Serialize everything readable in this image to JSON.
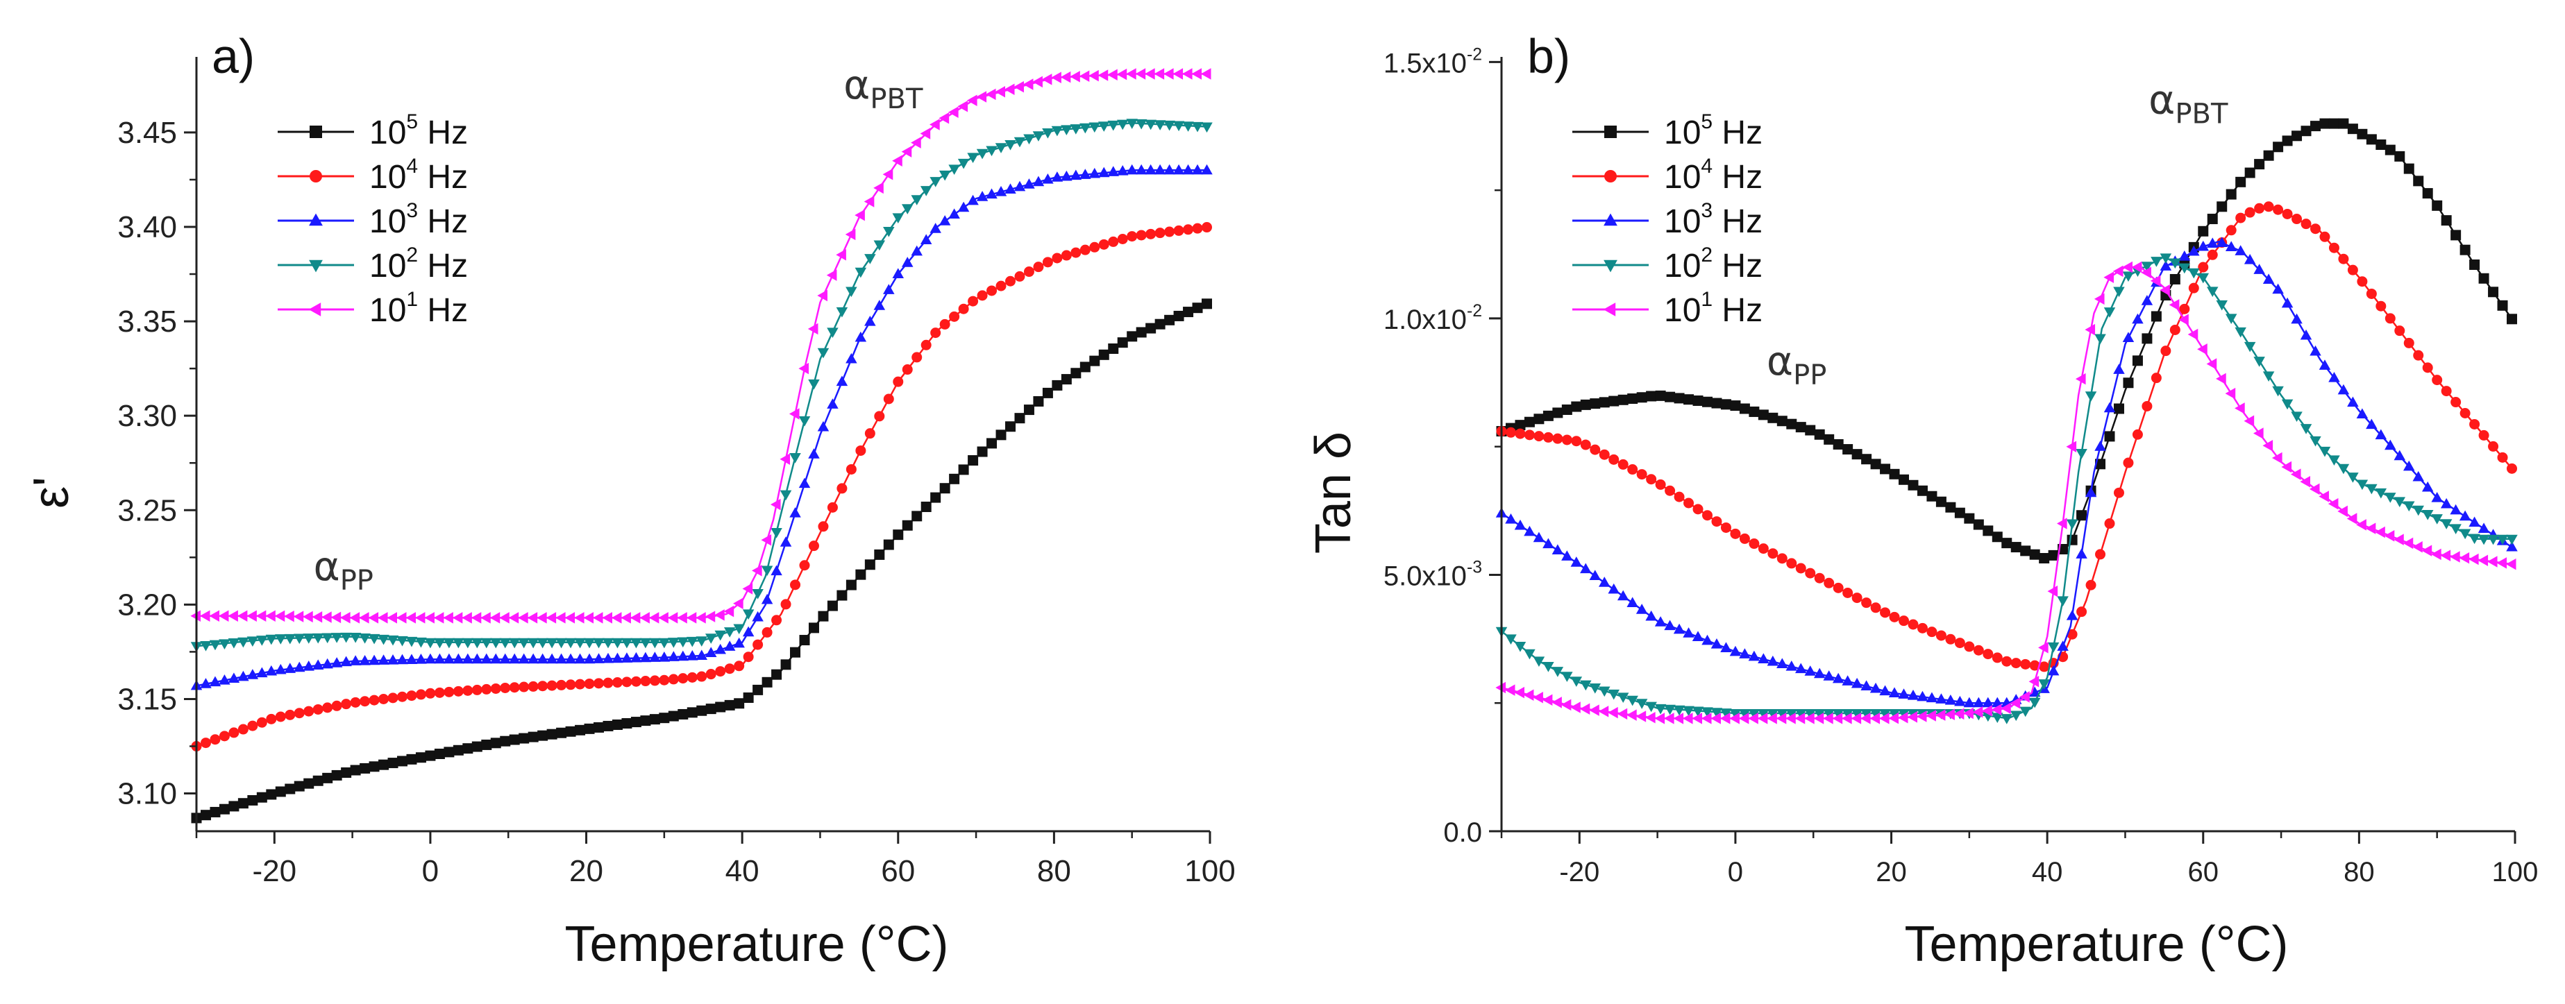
{
  "chart_data": [
    {
      "type": "line",
      "panel_label": "a)",
      "xlabel": "Temperature (°C)",
      "ylabel": "ε'",
      "xlim": [
        -30,
        100
      ],
      "ylim": [
        3.08,
        3.49
      ],
      "xticks": [
        -20,
        0,
        20,
        40,
        60,
        80,
        100
      ],
      "xtick_labels": [
        "-20",
        "0",
        "20",
        "40",
        "60",
        "80",
        "100"
      ],
      "yticks": [
        3.1,
        3.15,
        3.2,
        3.25,
        3.3,
        3.35,
        3.4,
        3.45
      ],
      "ytick_labels": [
        "3.10",
        "3.15",
        "3.20",
        "3.25",
        "3.30",
        "3.35",
        "3.40",
        "3.45"
      ],
      "legend_position": "top-left",
      "annotations": [
        {
          "base": "α",
          "sub": "PP",
          "x": -15,
          "y": 3.213
        },
        {
          "base": "α",
          "sub": "PBT",
          "x": 53,
          "y": 3.468
        }
      ],
      "series": [
        {
          "name_base": "10",
          "name_exp": "5",
          "name_unit": "Hz",
          "color": "#111111",
          "marker": "square",
          "x": [
            -30,
            -20,
            -10,
            0,
            10,
            20,
            30,
            35,
            40,
            45,
            50,
            55,
            60,
            70,
            80,
            90,
            100
          ],
          "y": [
            3.087,
            3.1,
            3.112,
            3.12,
            3.128,
            3.134,
            3.14,
            3.144,
            3.148,
            3.165,
            3.192,
            3.215,
            3.237,
            3.278,
            3.315,
            3.342,
            3.36
          ]
        },
        {
          "name_base": "10",
          "name_exp": "4",
          "name_unit": "Hz",
          "color": "#ff1a1a",
          "marker": "circle",
          "x": [
            -30,
            -20,
            -10,
            0,
            10,
            20,
            30,
            35,
            40,
            45,
            50,
            55,
            60,
            65,
            70,
            80,
            90,
            100
          ],
          "y": [
            3.125,
            3.14,
            3.148,
            3.153,
            3.156,
            3.158,
            3.16,
            3.162,
            3.168,
            3.195,
            3.238,
            3.28,
            3.318,
            3.345,
            3.362,
            3.383,
            3.395,
            3.4
          ]
        },
        {
          "name_base": "10",
          "name_exp": "3",
          "name_unit": "Hz",
          "color": "#1a1aff",
          "marker": "triangle-up",
          "x": [
            -30,
            -20,
            -10,
            0,
            10,
            20,
            30,
            35,
            40,
            43,
            46,
            50,
            55,
            60,
            65,
            70,
            80,
            90,
            100
          ],
          "y": [
            3.157,
            3.165,
            3.17,
            3.171,
            3.171,
            3.171,
            3.172,
            3.173,
            3.18,
            3.2,
            3.238,
            3.29,
            3.34,
            3.375,
            3.4,
            3.415,
            3.426,
            3.43,
            3.43
          ]
        },
        {
          "name_base": "10",
          "name_exp": "2",
          "name_unit": "Hz",
          "color": "#108a8a",
          "marker": "triangle-down",
          "x": [
            -30,
            -20,
            -10,
            0,
            10,
            20,
            30,
            35,
            40,
            43,
            46,
            50,
            55,
            60,
            65,
            70,
            80,
            90,
            100
          ],
          "y": [
            3.178,
            3.182,
            3.183,
            3.18,
            3.18,
            3.18,
            3.18,
            3.181,
            3.188,
            3.215,
            3.265,
            3.33,
            3.375,
            3.405,
            3.425,
            3.438,
            3.451,
            3.455,
            3.453
          ]
        },
        {
          "name_base": "10",
          "name_exp": "1",
          "name_unit": "Hz",
          "color": "#ff1aff",
          "marker": "triangle-left",
          "x": [
            -30,
            -20,
            -10,
            0,
            10,
            20,
            30,
            35,
            38,
            40,
            42,
            44,
            46,
            48,
            50,
            55,
            60,
            65,
            70,
            80,
            90,
            100
          ],
          "y": [
            3.194,
            3.194,
            3.193,
            3.193,
            3.193,
            3.193,
            3.193,
            3.193,
            3.195,
            3.202,
            3.218,
            3.245,
            3.285,
            3.325,
            3.36,
            3.405,
            3.435,
            3.455,
            3.468,
            3.479,
            3.481,
            3.481
          ]
        }
      ]
    },
    {
      "type": "line",
      "panel_label": "b)",
      "xlabel": "Temperature (°C)",
      "ylabel": "Tan δ",
      "xlim": [
        -30,
        100
      ],
      "ylim": [
        0.0,
        0.0151
      ],
      "xticks": [
        -20,
        0,
        20,
        40,
        60,
        80,
        100
      ],
      "xtick_labels": [
        "-20",
        "0",
        "20",
        "40",
        "60",
        "80",
        "100"
      ],
      "yticks": [
        0.0,
        0.005,
        0.01,
        0.015
      ],
      "ytick_labels": [
        {
          "m": "0.0",
          "e": ""
        },
        {
          "m": "5.0x10",
          "e": "-3"
        },
        {
          "m": "1.0x10",
          "e": "-2"
        },
        {
          "m": "1.5x10",
          "e": "-2"
        }
      ],
      "legend_position": "top-left",
      "annotations": [
        {
          "base": "α",
          "sub": "PP",
          "x": 4,
          "y": 0.0089
        },
        {
          "base": "α",
          "sub": "PBT",
          "x": 53,
          "y": 0.014
        }
      ],
      "series": [
        {
          "name_base": "10",
          "name_exp": "5",
          "name_unit": "Hz",
          "color": "#111111",
          "marker": "square",
          "x": [
            -30,
            -20,
            -10,
            0,
            10,
            20,
            30,
            35,
            40,
            43,
            46,
            50,
            55,
            60,
            65,
            70,
            75,
            78,
            85,
            90,
            95,
            100
          ],
          "y": [
            0.0078,
            0.0083,
            0.0085,
            0.0083,
            0.0078,
            0.007,
            0.0061,
            0.0056,
            0.0053,
            0.0056,
            0.0068,
            0.0086,
            0.0104,
            0.0117,
            0.0127,
            0.0134,
            0.0138,
            0.0138,
            0.0132,
            0.0122,
            0.011,
            0.0099
          ]
        },
        {
          "name_base": "10",
          "name_exp": "4",
          "name_unit": "Hz",
          "color": "#ff1a1a",
          "marker": "circle",
          "x": [
            -30,
            -20,
            -10,
            0,
            10,
            20,
            30,
            35,
            40,
            42,
            45,
            50,
            55,
            60,
            65,
            68,
            70,
            75,
            80,
            90,
            100
          ],
          "y": [
            0.0078,
            0.0076,
            0.0068,
            0.0058,
            0.005,
            0.0042,
            0.0036,
            0.0033,
            0.0032,
            0.0034,
            0.0045,
            0.007,
            0.0093,
            0.011,
            0.012,
            0.0122,
            0.0121,
            0.0117,
            0.0108,
            0.0088,
            0.007
          ]
        },
        {
          "name_base": "10",
          "name_exp": "3",
          "name_unit": "Hz",
          "color": "#1a1aff",
          "marker": "triangle-up",
          "x": [
            -30,
            -20,
            -10,
            0,
            10,
            20,
            30,
            35,
            40,
            43,
            46,
            50,
            55,
            60,
            62,
            65,
            70,
            75,
            80,
            90,
            100
          ],
          "y": [
            0.0062,
            0.0052,
            0.0041,
            0.0035,
            0.0031,
            0.0027,
            0.0025,
            0.0025,
            0.0028,
            0.004,
            0.007,
            0.0095,
            0.011,
            0.0114,
            0.0115,
            0.0113,
            0.0105,
            0.0092,
            0.0082,
            0.0065,
            0.0055
          ]
        },
        {
          "name_base": "10",
          "name_exp": "2",
          "name_unit": "Hz",
          "color": "#108a8a",
          "marker": "triangle-down",
          "x": [
            -30,
            -25,
            -20,
            -10,
            0,
            10,
            20,
            30,
            35,
            38,
            40,
            42,
            44,
            47,
            50,
            55,
            60,
            65,
            70,
            75,
            80,
            90,
            95,
            100
          ],
          "y": [
            0.0039,
            0.0033,
            0.0029,
            0.0024,
            0.0023,
            0.0023,
            0.0023,
            0.0023,
            0.0022,
            0.0024,
            0.003,
            0.0045,
            0.007,
            0.0098,
            0.0108,
            0.0112,
            0.0108,
            0.0097,
            0.0085,
            0.0075,
            0.0068,
            0.0061,
            0.0057,
            0.0057
          ]
        },
        {
          "name_base": "10",
          "name_exp": "1",
          "name_unit": "Hz",
          "color": "#ff1aff",
          "marker": "triangle-left",
          "x": [
            -30,
            -20,
            -10,
            0,
            10,
            20,
            30,
            35,
            38,
            40,
            42,
            44,
            46,
            48,
            50,
            52,
            55,
            60,
            65,
            70,
            80,
            90,
            100
          ],
          "y": [
            0.0028,
            0.0024,
            0.0022,
            0.0022,
            0.0022,
            0.0022,
            0.0023,
            0.0024,
            0.0027,
            0.0038,
            0.006,
            0.0085,
            0.0101,
            0.0108,
            0.011,
            0.011,
            0.0106,
            0.0094,
            0.0082,
            0.0072,
            0.006,
            0.0054,
            0.0052
          ]
        }
      ]
    }
  ]
}
